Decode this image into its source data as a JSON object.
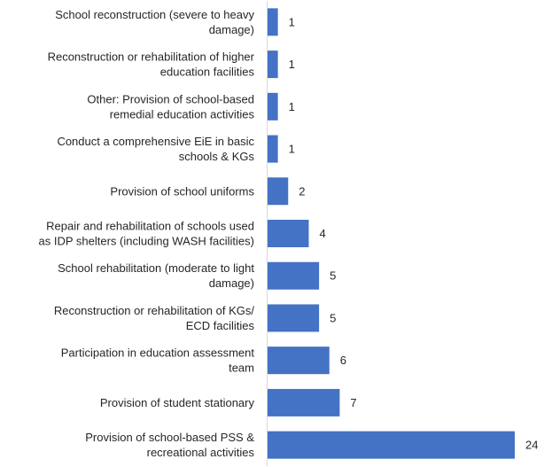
{
  "chart_data": {
    "type": "bar",
    "orientation": "horizontal",
    "title": "",
    "xlabel": "",
    "ylabel": "",
    "xlim": [
      0,
      24
    ],
    "grid": false,
    "legend": "none",
    "bar_color": "#4472C4",
    "axis_color": "#D9D9D9",
    "text_color": "#262626",
    "categories": [
      [
        "School reconstruction (severe to heavy",
        "damage)"
      ],
      [
        "Reconstruction or rehabilitation of higher",
        "education facilities"
      ],
      [
        "Other: Provision of school-based",
        "remedial education activities"
      ],
      [
        "Conduct a comprehensive EiE in basic",
        "schools & KGs"
      ],
      [
        "Provision of school uniforms"
      ],
      [
        "Repair and rehabilitation of schools used",
        "as IDP shelters (including WASH facilities)"
      ],
      [
        "School rehabilitation (moderate to light",
        "damage)"
      ],
      [
        "Reconstruction or rehabilitation of KGs/",
        "ECD facilities"
      ],
      [
        "Participation in education assessment",
        "team"
      ],
      [
        "Provision of student stationary"
      ],
      [
        "Provision of school-based PSS &",
        "recreational activities"
      ]
    ],
    "values": [
      1,
      1,
      1,
      1,
      2,
      4,
      5,
      5,
      6,
      7,
      24
    ]
  }
}
